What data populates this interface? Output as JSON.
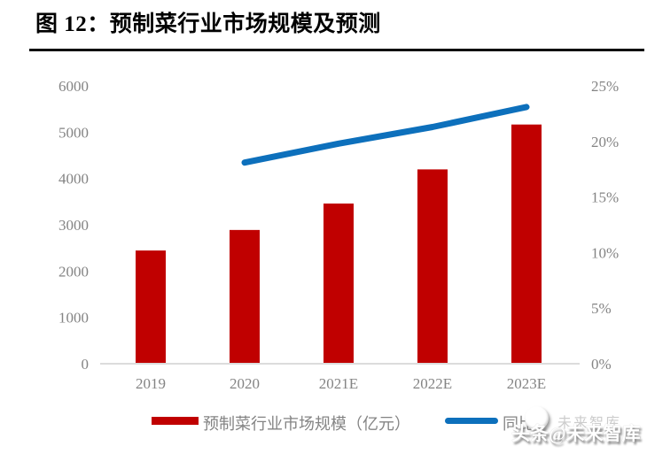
{
  "title": "图 12：预制菜行业市场规模及预测",
  "watermark": {
    "main_text": "头条@未来智库",
    "ghost_text": "未来智库",
    "logo": "toutiao-face-logo"
  },
  "colors": {
    "bar": "#c00000",
    "line": "#0d70bc",
    "axis_text": "#848484",
    "axis_line": "#dcdcdc",
    "title_text": "#000000"
  },
  "chart_data": {
    "type": "bar",
    "subtype": "bar+line combo",
    "title": "图 12：预制菜行业市场规模及预测",
    "categories": [
      "2019",
      "2020",
      "2021E",
      "2022E",
      "2023E"
    ],
    "series": [
      {
        "name": "预制菜行业市场规模（亿元）",
        "type": "bar",
        "axis": "left",
        "color": "#c00000",
        "values": [
          2445,
          2888,
          3459,
          4196,
          5165
        ]
      },
      {
        "name": "同比",
        "type": "line",
        "axis": "right",
        "color": "#0d70bc",
        "values": [
          null,
          18.1,
          19.8,
          21.3,
          23.1
        ]
      }
    ],
    "left_axis": {
      "min": 0,
      "max": 6000,
      "ticks": [
        "0",
        "1000",
        "2000",
        "3000",
        "4000",
        "5000",
        "6000"
      ]
    },
    "right_axis": {
      "min": 0,
      "max": 25,
      "ticks": [
        "0%",
        "5%",
        "10%",
        "15%",
        "20%",
        "25%"
      ]
    },
    "grid": false,
    "legend_position": "bottom"
  }
}
